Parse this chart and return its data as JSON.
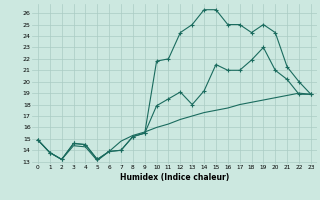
{
  "xlabel": "Humidex (Indice chaleur)",
  "background_color": "#cce8e0",
  "grid_color": "#aaccc4",
  "line_color": "#1a6b5e",
  "xlim": [
    -0.5,
    23.5
  ],
  "ylim": [
    12.8,
    26.8
  ],
  "yticks": [
    13,
    14,
    15,
    16,
    17,
    18,
    19,
    20,
    21,
    22,
    23,
    24,
    25,
    26
  ],
  "xticks": [
    0,
    1,
    2,
    3,
    4,
    5,
    6,
    7,
    8,
    9,
    10,
    11,
    12,
    13,
    14,
    15,
    16,
    17,
    18,
    19,
    20,
    21,
    22,
    23
  ],
  "line1_x": [
    0,
    1,
    2,
    3,
    4,
    5,
    6,
    7,
    8,
    9,
    10,
    11,
    12,
    13,
    14,
    15,
    16,
    17,
    18,
    19,
    20,
    21,
    22,
    23
  ],
  "line1_y": [
    14.9,
    13.8,
    13.2,
    14.6,
    14.5,
    13.2,
    13.9,
    14.0,
    15.2,
    15.5,
    17.9,
    18.5,
    19.1,
    18.0,
    19.2,
    21.5,
    21.0,
    21.0,
    21.9,
    23.0,
    21.0,
    20.2,
    18.9,
    18.9
  ],
  "line2_x": [
    0,
    1,
    2,
    3,
    4,
    5,
    6,
    7,
    8,
    9,
    10,
    11,
    12,
    13,
    14,
    15,
    16,
    17,
    18,
    19,
    20,
    21,
    22,
    23
  ],
  "line2_y": [
    14.9,
    13.8,
    13.2,
    14.6,
    14.5,
    13.2,
    13.9,
    14.0,
    15.2,
    15.5,
    21.8,
    22.0,
    24.3,
    25.0,
    26.3,
    26.3,
    25.0,
    25.0,
    24.3,
    25.0,
    24.3,
    21.3,
    20.0,
    18.9
  ],
  "line3_x": [
    0,
    1,
    2,
    3,
    4,
    5,
    6,
    7,
    8,
    9,
    10,
    11,
    12,
    13,
    14,
    15,
    16,
    17,
    18,
    19,
    20,
    21,
    22,
    23
  ],
  "line3_y": [
    14.9,
    13.8,
    13.2,
    14.4,
    14.3,
    13.1,
    13.9,
    14.8,
    15.3,
    15.6,
    16.0,
    16.3,
    16.7,
    17.0,
    17.3,
    17.5,
    17.7,
    18.0,
    18.2,
    18.4,
    18.6,
    18.8,
    19.0,
    18.9
  ]
}
